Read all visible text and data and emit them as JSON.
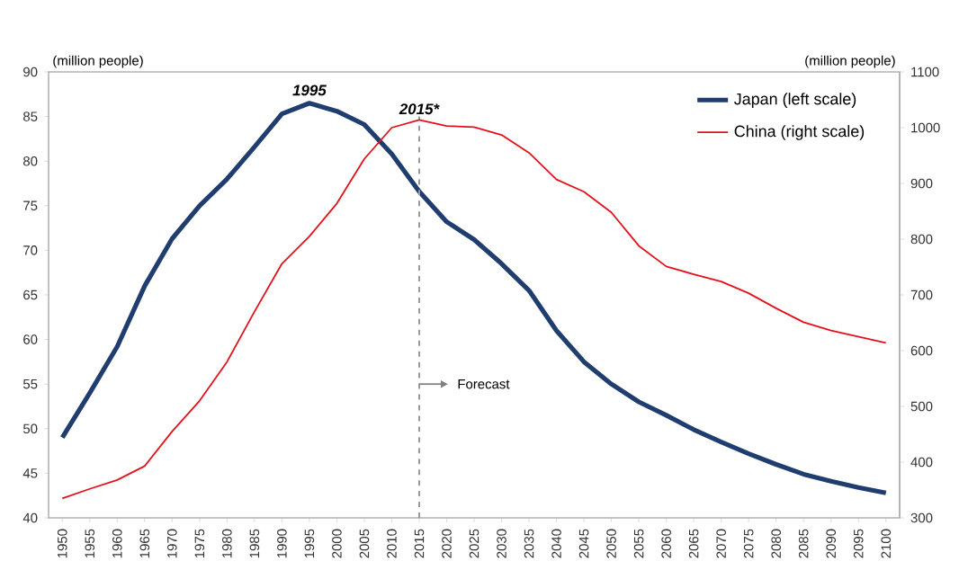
{
  "chart_data": {
    "type": "line",
    "ylabel": "(million people)",
    "y2label": "(million people)",
    "x": [
      1950,
      1955,
      1960,
      1965,
      1970,
      1975,
      1980,
      1985,
      1990,
      1995,
      2000,
      2005,
      2010,
      2015,
      2020,
      2025,
      2030,
      2035,
      2040,
      2045,
      2050,
      2055,
      2060,
      2065,
      2070,
      2075,
      2080,
      2085,
      2090,
      2095,
      2100
    ],
    "series": [
      {
        "name": "Japan (left scale)",
        "color": "#1f3d6e",
        "axis": "y",
        "values": [
          49,
          54,
          59.2,
          66,
          71.3,
          75,
          78,
          81.6,
          85.3,
          86.5,
          85.6,
          84.1,
          80.8,
          76.6,
          73.2,
          71.2,
          68.5,
          65.5,
          61,
          57.5,
          55,
          53,
          51.5,
          49.9,
          48.5,
          47.2,
          46,
          44.9,
          44.1,
          43.4,
          42.8
        ]
      },
      {
        "name": "China (right scale)",
        "color": "#e3111b",
        "axis": "y2",
        "values": [
          335,
          352,
          368,
          393,
          455,
          510,
          580,
          670,
          756,
          805,
          864,
          944,
          1000,
          1014,
          1003,
          1001,
          987,
          955,
          907,
          885,
          848,
          788,
          751,
          737,
          724,
          703,
          676,
          651,
          636,
          625,
          614
        ]
      }
    ],
    "xlim": [
      1947.5,
      2102.5
    ],
    "xticks": [
      1950,
      1955,
      1960,
      1965,
      1970,
      1975,
      1980,
      1985,
      1990,
      1995,
      2000,
      2005,
      2010,
      2015,
      2020,
      2025,
      2030,
      2035,
      2040,
      2045,
      2050,
      2055,
      2060,
      2065,
      2070,
      2075,
      2080,
      2085,
      2090,
      2095,
      2100
    ],
    "ylim": [
      40,
      90
    ],
    "yticks": [
      40,
      45,
      50,
      55,
      60,
      65,
      70,
      75,
      80,
      85,
      90
    ],
    "y2lim": [
      300,
      1100
    ],
    "y2ticks": [
      300,
      400,
      500,
      600,
      700,
      800,
      900,
      1000,
      1100
    ],
    "ref_lines": [
      {
        "axis": "x",
        "value": 2015,
        "label": "2015*",
        "color": "#999999",
        "line_style": "dashed"
      }
    ],
    "annotations": [
      {
        "text": "1995",
        "x": 1995,
        "y": 86.5
      },
      "Forecast"
    ],
    "legend": "top right"
  }
}
